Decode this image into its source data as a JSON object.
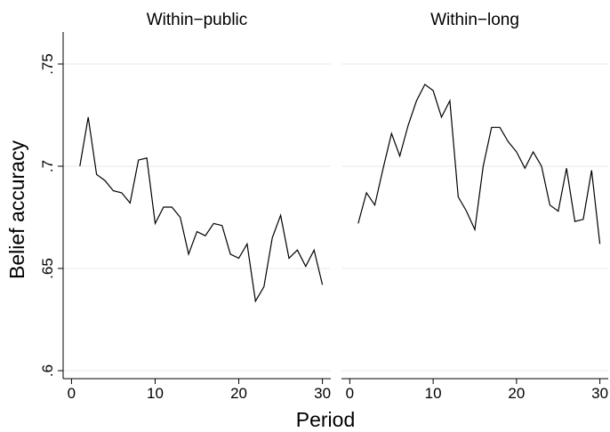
{
  "chart_data": {
    "type": "line",
    "xlabel": "Period",
    "ylabel": "Belief accuracy",
    "xlim": [
      -1,
      31
    ],
    "ylim": [
      0.6,
      0.75
    ],
    "xticks": [
      0,
      10,
      20,
      30
    ],
    "xtick_labels": [
      "0",
      "10",
      "20",
      "30"
    ],
    "yticks": [
      0.6,
      0.65,
      0.7,
      0.75
    ],
    "ytick_labels": [
      ".6",
      ".65",
      ".7",
      ".75"
    ],
    "grid": true,
    "panels": [
      {
        "title": "Within−public",
        "x": [
          1,
          2,
          3,
          4,
          5,
          6,
          7,
          8,
          9,
          10,
          11,
          12,
          13,
          14,
          15,
          16,
          17,
          18,
          19,
          20,
          21,
          22,
          23,
          24,
          25,
          26,
          27,
          28,
          29,
          30
        ],
        "y": [
          0.7,
          0.724,
          0.696,
          0.693,
          0.688,
          0.687,
          0.682,
          0.703,
          0.704,
          0.672,
          0.68,
          0.68,
          0.675,
          0.657,
          0.668,
          0.666,
          0.672,
          0.671,
          0.657,
          0.655,
          0.662,
          0.634,
          0.641,
          0.665,
          0.676,
          0.655,
          0.659,
          0.651,
          0.659,
          0.642
        ]
      },
      {
        "title": "Within−long",
        "x": [
          1,
          2,
          3,
          4,
          5,
          6,
          7,
          8,
          9,
          10,
          11,
          12,
          13,
          14,
          15,
          16,
          17,
          18,
          19,
          20,
          21,
          22,
          23,
          24,
          25,
          26,
          27,
          28,
          29,
          30
        ],
        "y": [
          0.672,
          0.687,
          0.681,
          0.699,
          0.716,
          0.705,
          0.72,
          0.732,
          0.74,
          0.737,
          0.724,
          0.732,
          0.685,
          0.678,
          0.669,
          0.7,
          0.719,
          0.719,
          0.712,
          0.707,
          0.699,
          0.707,
          0.7,
          0.681,
          0.678,
          0.699,
          0.673,
          0.674,
          0.698,
          0.662
        ]
      }
    ]
  }
}
